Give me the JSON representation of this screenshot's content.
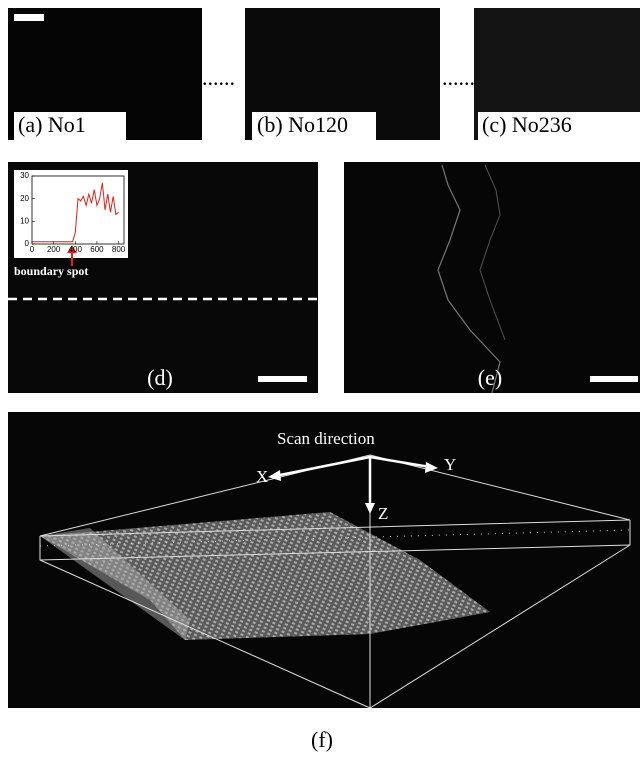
{
  "panels": [
    {
      "label": "(a) No1"
    },
    {
      "label": "(b) No120"
    },
    {
      "label": "(c) No236"
    }
  ],
  "ellipsis": [
    "......",
    "......"
  ],
  "panel_d": {
    "label": "(d)",
    "annotation": "boundary spot",
    "inset": {
      "type": "line",
      "xlim": [
        0,
        850
      ],
      "ylim": [
        0,
        30
      ],
      "xticks": [
        0,
        200,
        400,
        600,
        800
      ],
      "yticks": [
        0,
        10,
        20,
        30
      ],
      "color": "#e0201a",
      "x": [
        0,
        50,
        100,
        150,
        200,
        250,
        300,
        350,
        375,
        400,
        425,
        450,
        475,
        500,
        525,
        550,
        575,
        600,
        625,
        650,
        675,
        700,
        725,
        750,
        775,
        800
      ],
      "values": [
        1,
        1,
        1,
        1,
        1,
        1,
        1,
        1,
        1,
        5,
        20,
        19,
        21,
        17,
        22,
        18,
        24,
        17,
        20,
        27,
        15,
        22,
        14,
        21,
        13,
        14
      ]
    }
  },
  "panel_e": {
    "label": "(e)"
  },
  "panel_f": {
    "title": "Scan direction",
    "axes": [
      "X",
      "Y",
      "Z"
    ],
    "caption": "(f)"
  }
}
